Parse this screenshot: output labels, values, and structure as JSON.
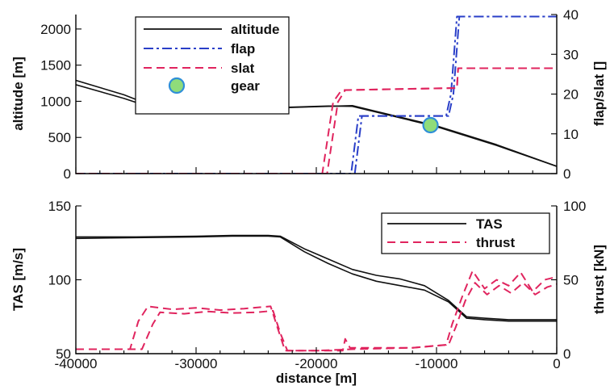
{
  "chart_data": [
    {
      "type": "line",
      "xlabel": "",
      "ylabel": "altitude [m]",
      "y2label": "flap/slat []",
      "xlim": [
        -40000,
        0
      ],
      "ylim": [
        0,
        2200
      ],
      "y2lim": [
        0,
        40
      ],
      "yticks": [
        0,
        500,
        1000,
        1500,
        2000
      ],
      "y2ticks": [
        0,
        10,
        20,
        30,
        40
      ],
      "legend": {
        "placement": "top-left",
        "entries": [
          "altitude",
          "flap",
          "slat",
          "gear"
        ]
      },
      "colors": {
        "altitude": "#111111",
        "flap": "#2a3fc8",
        "slat": "#e0245e",
        "gear_fill": "#8fdc7a",
        "gear_edge": "#2f8fd8"
      },
      "series": [
        {
          "name": "altitude",
          "axis": "left",
          "style": "solid",
          "x": [
            -40000,
            -36000,
            -34000,
            -32000,
            -28000,
            -24000,
            -19000,
            -17000,
            -15000,
            -10000,
            -5000,
            0
          ],
          "y": [
            1290,
            1090,
            960,
            900,
            900,
            905,
            930,
            940,
            860,
            660,
            400,
            100
          ]
        },
        {
          "name": "altitude",
          "axis": "left",
          "style": "solid",
          "x": [
            -40000,
            -36000,
            -34000,
            -32000,
            -28000,
            -24000,
            -19000,
            -17000,
            -15000,
            -10000,
            -5000,
            0
          ],
          "y": [
            1230,
            1040,
            930,
            905,
            905,
            910,
            935,
            930,
            850,
            650,
            390,
            100
          ]
        },
        {
          "name": "flap",
          "axis": "right",
          "style": "dashdot",
          "x": [
            -40000,
            -16800,
            -16200,
            -15900,
            -9200,
            -8800,
            -8300,
            0
          ],
          "y": [
            0,
            0,
            14.5,
            14.5,
            14.5,
            20,
            39.5,
            39.5
          ]
        },
        {
          "name": "flap",
          "axis": "right",
          "style": "dashdot",
          "x": [
            -40000,
            -17100,
            -16500,
            -16100,
            -9000,
            -8600,
            -8100,
            0
          ],
          "y": [
            0,
            0,
            14.5,
            14.5,
            14.5,
            20,
            39.5,
            39.5
          ]
        },
        {
          "name": "slat",
          "axis": "right",
          "style": "dashed",
          "x": [
            -40000,
            -19100,
            -18200,
            -17600,
            -8800,
            -8300,
            -8200,
            0
          ],
          "y": [
            0,
            0,
            18,
            21,
            21.5,
            21.5,
            26.5,
            26.5
          ]
        },
        {
          "name": "slat",
          "axis": "right",
          "style": "dashed",
          "x": [
            -40000,
            -19500,
            -18600,
            -17900,
            -8800,
            -8300,
            -8200,
            0
          ],
          "y": [
            0,
            0,
            18,
            21,
            21.5,
            21.5,
            26.5,
            26.5
          ]
        }
      ],
      "gear_points": [
        {
          "x": -32000,
          "y": 1100
        },
        {
          "x": -10500,
          "y": 670
        }
      ]
    },
    {
      "type": "line",
      "xlabel": "distance [m]",
      "ylabel": "TAS [m/s]",
      "y2label": "thrust [kN]",
      "xlim": [
        -40000,
        0
      ],
      "ylim": [
        50,
        150
      ],
      "y2lim": [
        0,
        100
      ],
      "xticks": [
        -40000,
        -30000,
        -20000,
        -10000,
        0
      ],
      "yticks": [
        50,
        100,
        150
      ],
      "y2ticks": [
        0,
        50,
        100
      ],
      "legend": {
        "placement": "top-right",
        "entries": [
          "TAS",
          "thrust"
        ]
      },
      "colors": {
        "TAS": "#111111",
        "thrust": "#e0245e"
      },
      "series": [
        {
          "name": "TAS",
          "axis": "left",
          "style": "solid",
          "x": [
            -40000,
            -35000,
            -30000,
            -27000,
            -24000,
            -23000,
            -21000,
            -19000,
            -17000,
            -15000,
            -13000,
            -11000,
            -9000,
            -7500,
            -6000,
            -4000,
            -2000,
            0
          ],
          "y": [
            129,
            129,
            129.5,
            130,
            130,
            129.5,
            121,
            114,
            107,
            103,
            100.5,
            96,
            86,
            75,
            74,
            73,
            73,
            73
          ]
        },
        {
          "name": "TAS",
          "axis": "left",
          "style": "solid",
          "x": [
            -40000,
            -35000,
            -30000,
            -27000,
            -24000,
            -23000,
            -21000,
            -19000,
            -17000,
            -15000,
            -13000,
            -11000,
            -9000,
            -7500,
            -6000,
            -4000,
            -2000,
            0
          ],
          "y": [
            128,
            128.5,
            129,
            129.5,
            129.5,
            129,
            119,
            111,
            104,
            99,
            96,
            93,
            85,
            74,
            73,
            72,
            72,
            72
          ]
        },
        {
          "name": "thrust",
          "axis": "right",
          "style": "dashed",
          "x": [
            -40000,
            -35500,
            -34800,
            -34000,
            -32000,
            -30000,
            -28000,
            -26000,
            -23800,
            -23200,
            -22600,
            -20000,
            -17800,
            -17600,
            -17200,
            -12000,
            -9200,
            -8700,
            -7800,
            -7000,
            -6000,
            -5000,
            -4000,
            -3000,
            -2000,
            -1000,
            0
          ],
          "y": [
            3,
            3,
            22,
            32,
            30,
            31,
            29.5,
            30.5,
            32,
            17,
            2,
            2,
            2,
            10,
            4,
            4,
            6,
            20,
            40,
            56,
            44,
            50,
            46,
            55,
            42,
            50,
            52
          ]
        },
        {
          "name": "thrust",
          "axis": "right",
          "style": "dashed",
          "x": [
            -40000,
            -34500,
            -33600,
            -33000,
            -31000,
            -29000,
            -27000,
            -25000,
            -23600,
            -23000,
            -22400,
            -20000,
            -17000,
            -12000,
            -9000,
            -8400,
            -7600,
            -6800,
            -5800,
            -4800,
            -3800,
            -2800,
            -1800,
            -800,
            0
          ],
          "y": [
            3,
            3,
            20,
            28,
            27,
            28.5,
            27.5,
            28,
            29,
            14,
            2,
            2,
            3,
            4,
            6,
            18,
            36,
            48,
            40,
            46,
            41,
            48,
            40,
            45,
            47
          ]
        }
      ]
    }
  ]
}
